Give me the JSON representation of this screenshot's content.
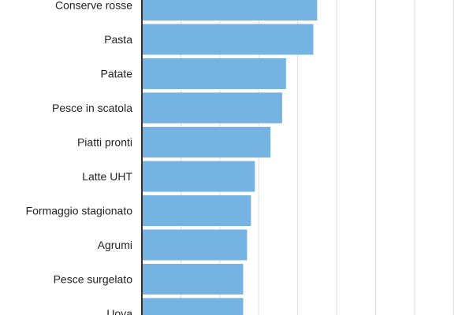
{
  "chart_data": {
    "type": "bar",
    "orientation": "horizontal",
    "categories": [
      "Conserve rosse",
      "Pasta",
      "Patate",
      "Pesce in scatola",
      "Piatti pronti",
      "Latte UHT",
      "Formaggio stagionato",
      "Agrumi",
      "Pesce surgelato",
      "Uova"
    ],
    "values": [
      45,
      44,
      37,
      36,
      33,
      29,
      28,
      27,
      26,
      26
    ],
    "title": "",
    "xlabel": "",
    "ylabel": "",
    "xlim": [
      0,
      85
    ],
    "grid": "vertical",
    "legend": "none"
  },
  "colors": {
    "bar": "#74b3e2",
    "grid": "#dddddd",
    "axis": "#333333",
    "text": "#222222"
  }
}
